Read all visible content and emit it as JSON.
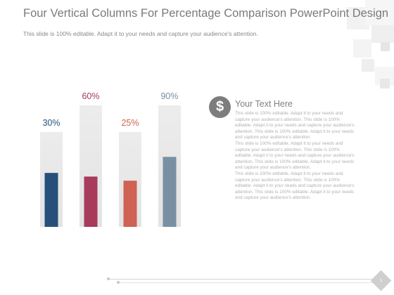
{
  "slide": {
    "title": "Four Vertical Columns For Percentage Comparison PowerPoint Design",
    "subtitle": "This slide is 100% editable. Adapt it to your needs and capture your audience's attention.",
    "page_number": "1"
  },
  "colors": {
    "series": [
      "#26507a",
      "#a83a5c",
      "#cf6252",
      "#7890a2"
    ],
    "track": "#e3e3e3",
    "icon": "#7d7d7d"
  },
  "text_box": {
    "icon": "dollar-icon",
    "heading": "Your Text Here",
    "paragraphs": [
      "This slide is 100% editable. Adapt it to your needs and capture your audience's attention. This slide is 100% editable. Adapt it to your needs and capture your audience's attention. This slide is 100% editable. Adapt it to your needs and capture your audience's attention.",
      "This slide is 100% editable. Adapt it to your needs and capture your audience's attention. This slide is 100% editable. Adapt it to your needs and capture your audience's attention. This slide is 100% editable. Adapt it to your needs and capture your audience's attention.",
      "This slide is 100% editable. Adapt it to your needs and capture your audience's attention. This slide is 100% editable. Adapt it to your needs and capture your audience's attention. This slide is 100% editable. Adapt it to your needs and capture your audience's attention."
    ]
  },
  "chart_data": {
    "type": "bar",
    "categories": [
      "",
      "",
      "",
      ""
    ],
    "values": [
      30,
      60,
      25,
      90
    ],
    "labels": [
      "30%",
      "60%",
      "25%",
      "90%"
    ],
    "ylim": [
      0,
      100
    ],
    "grid": false,
    "legend": "none"
  }
}
